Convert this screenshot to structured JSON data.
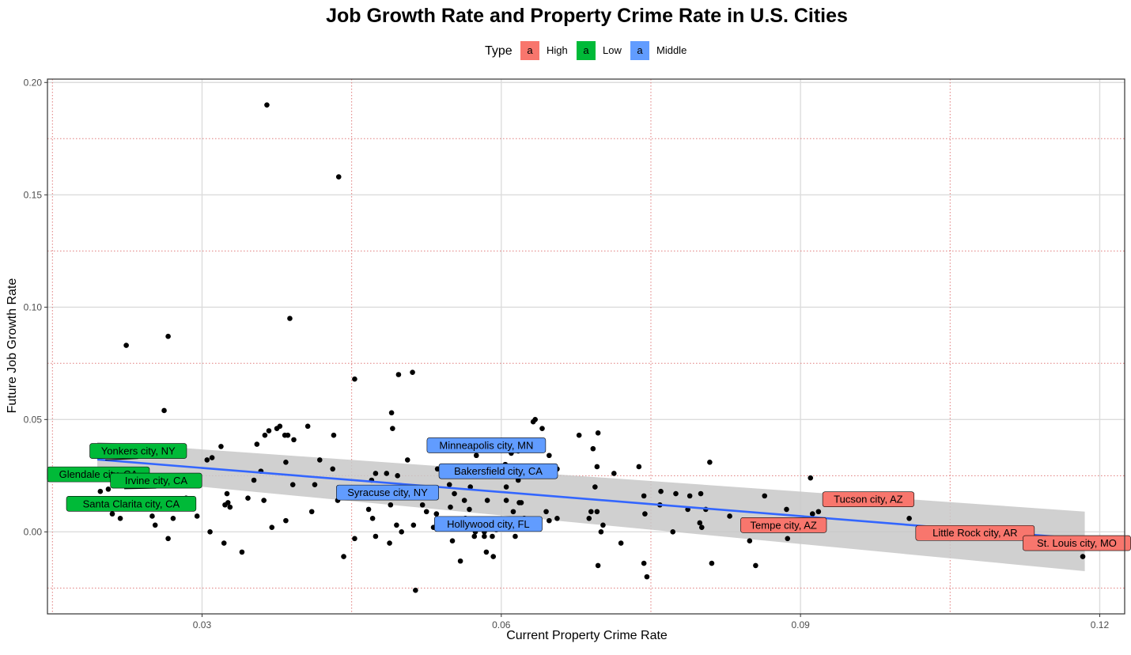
{
  "chart_data": {
    "type": "scatter",
    "title": "Job Growth Rate and Property Crime Rate in U.S. Cities",
    "xlabel": "Current Property Crime Rate",
    "ylabel": "Future Job Growth Rate",
    "xlim": [
      0.0145,
      0.1225
    ],
    "ylim": [
      -0.0365,
      0.2015
    ],
    "x_ticks": [
      0.03,
      0.06,
      0.09,
      0.12
    ],
    "x_tick_labels": [
      "0.03",
      "0.06",
      "0.09",
      "0.12"
    ],
    "y_ticks": [
      0.0,
      0.05,
      0.1,
      0.15,
      0.2
    ],
    "y_tick_labels": [
      "0.00",
      "0.05",
      "0.10",
      "0.15",
      "0.20"
    ],
    "reference_lines_x": [
      0.015,
      0.045,
      0.075,
      0.105
    ],
    "reference_lines_y": [
      -0.025,
      0.025,
      0.075,
      0.125,
      0.175
    ],
    "legend": {
      "title": "Type",
      "position": "top",
      "entries": [
        {
          "label": "High",
          "key": "a",
          "color": "#F8766D"
        },
        {
          "label": "Low",
          "key": "a",
          "color": "#00BA38"
        },
        {
          "label": "Middle",
          "key": "a",
          "color": "#619CFF"
        }
      ]
    },
    "trend_line": {
      "method": "linear",
      "color": "#3366FF",
      "x": [
        0.0195,
        0.1185
      ],
      "y": [
        0.0322,
        -0.0032
      ],
      "band_color": "#C8C8C8",
      "band_lower": [
        0.0245,
        -0.0175
      ],
      "band_upper": [
        0.04,
        0.009
      ]
    },
    "points": [
      {
        "x": 0.0365,
        "y": 0.19
      },
      {
        "x": 0.0437,
        "y": 0.158
      },
      {
        "x": 0.0388,
        "y": 0.095
      },
      {
        "x": 0.0266,
        "y": 0.087
      },
      {
        "x": 0.0224,
        "y": 0.083
      },
      {
        "x": 0.0511,
        "y": 0.071
      },
      {
        "x": 0.0497,
        "y": 0.07
      },
      {
        "x": 0.0453,
        "y": 0.068
      },
      {
        "x": 0.0262,
        "y": 0.054
      },
      {
        "x": 0.049,
        "y": 0.053
      },
      {
        "x": 0.0634,
        "y": 0.05
      },
      {
        "x": 0.0632,
        "y": 0.049
      },
      {
        "x": 0.0378,
        "y": 0.047
      },
      {
        "x": 0.0406,
        "y": 0.047
      },
      {
        "x": 0.0491,
        "y": 0.046
      },
      {
        "x": 0.0641,
        "y": 0.046
      },
      {
        "x": 0.0367,
        "y": 0.045
      },
      {
        "x": 0.0375,
        "y": 0.046
      },
      {
        "x": 0.0383,
        "y": 0.043
      },
      {
        "x": 0.0386,
        "y": 0.043
      },
      {
        "x": 0.0432,
        "y": 0.043
      },
      {
        "x": 0.0363,
        "y": 0.043
      },
      {
        "x": 0.0678,
        "y": 0.043
      },
      {
        "x": 0.0697,
        "y": 0.044
      },
      {
        "x": 0.0392,
        "y": 0.041
      },
      {
        "x": 0.0355,
        "y": 0.039
      },
      {
        "x": 0.0319,
        "y": 0.038
      },
      {
        "x": 0.0692,
        "y": 0.037
      },
      {
        "x": 0.0617,
        "y": 0.036
      },
      {
        "x": 0.061,
        "y": 0.035
      },
      {
        "x": 0.0648,
        "y": 0.034
      },
      {
        "x": 0.0575,
        "y": 0.034
      },
      {
        "x": 0.031,
        "y": 0.033
      },
      {
        "x": 0.0305,
        "y": 0.032
      },
      {
        "x": 0.0418,
        "y": 0.032
      },
      {
        "x": 0.0506,
        "y": 0.032
      },
      {
        "x": 0.0384,
        "y": 0.031
      },
      {
        "x": 0.0809,
        "y": 0.031
      },
      {
        "x": 0.0604,
        "y": 0.03
      },
      {
        "x": 0.0738,
        "y": 0.029
      },
      {
        "x": 0.0696,
        "y": 0.029
      },
      {
        "x": 0.0536,
        "y": 0.028
      },
      {
        "x": 0.0431,
        "y": 0.028
      },
      {
        "x": 0.0656,
        "y": 0.028
      },
      {
        "x": 0.0359,
        "y": 0.027
      },
      {
        "x": 0.0474,
        "y": 0.026
      },
      {
        "x": 0.0485,
        "y": 0.026
      },
      {
        "x": 0.0713,
        "y": 0.026
      },
      {
        "x": 0.0496,
        "y": 0.025
      },
      {
        "x": 0.0638,
        "y": 0.025
      },
      {
        "x": 0.0352,
        "y": 0.023
      },
      {
        "x": 0.047,
        "y": 0.023
      },
      {
        "x": 0.0617,
        "y": 0.023
      },
      {
        "x": 0.0413,
        "y": 0.021
      },
      {
        "x": 0.0391,
        "y": 0.021
      },
      {
        "x": 0.0548,
        "y": 0.021
      },
      {
        "x": 0.0569,
        "y": 0.02
      },
      {
        "x": 0.0605,
        "y": 0.02
      },
      {
        "x": 0.0694,
        "y": 0.02
      },
      {
        "x": 0.091,
        "y": 0.024
      },
      {
        "x": 0.0287,
        "y": 0.021
      },
      {
        "x": 0.0206,
        "y": 0.019
      },
      {
        "x": 0.0198,
        "y": 0.018
      },
      {
        "x": 0.0325,
        "y": 0.017
      },
      {
        "x": 0.0468,
        "y": 0.017
      },
      {
        "x": 0.0553,
        "y": 0.017
      },
      {
        "x": 0.076,
        "y": 0.018
      },
      {
        "x": 0.0789,
        "y": 0.016
      },
      {
        "x": 0.0864,
        "y": 0.016
      },
      {
        "x": 0.0743,
        "y": 0.016
      },
      {
        "x": 0.0775,
        "y": 0.017
      },
      {
        "x": 0.08,
        "y": 0.017
      },
      {
        "x": 0.0284,
        "y": 0.015
      },
      {
        "x": 0.0346,
        "y": 0.015
      },
      {
        "x": 0.0436,
        "y": 0.014
      },
      {
        "x": 0.0605,
        "y": 0.014
      },
      {
        "x": 0.0362,
        "y": 0.014
      },
      {
        "x": 0.0586,
        "y": 0.014
      },
      {
        "x": 0.0326,
        "y": 0.013
      },
      {
        "x": 0.0563,
        "y": 0.014
      },
      {
        "x": 0.0618,
        "y": 0.013
      },
      {
        "x": 0.062,
        "y": 0.013
      },
      {
        "x": 0.0323,
        "y": 0.012
      },
      {
        "x": 0.0521,
        "y": 0.012
      },
      {
        "x": 0.0489,
        "y": 0.012
      },
      {
        "x": 0.0549,
        "y": 0.011
      },
      {
        "x": 0.0759,
        "y": 0.012
      },
      {
        "x": 0.0787,
        "y": 0.01
      },
      {
        "x": 0.0805,
        "y": 0.01
      },
      {
        "x": 0.0886,
        "y": 0.01
      },
      {
        "x": 0.0328,
        "y": 0.011
      },
      {
        "x": 0.0467,
        "y": 0.01
      },
      {
        "x": 0.0568,
        "y": 0.01
      },
      {
        "x": 0.0525,
        "y": 0.009
      },
      {
        "x": 0.0535,
        "y": 0.008
      },
      {
        "x": 0.0612,
        "y": 0.009
      },
      {
        "x": 0.0645,
        "y": 0.009
      },
      {
        "x": 0.069,
        "y": 0.009
      },
      {
        "x": 0.0696,
        "y": 0.009
      },
      {
        "x": 0.041,
        "y": 0.009
      },
      {
        "x": 0.021,
        "y": 0.008
      },
      {
        "x": 0.025,
        "y": 0.007
      },
      {
        "x": 0.0295,
        "y": 0.007
      },
      {
        "x": 0.0218,
        "y": 0.006
      },
      {
        "x": 0.0384,
        "y": 0.005
      },
      {
        "x": 0.0271,
        "y": 0.006
      },
      {
        "x": 0.0471,
        "y": 0.006
      },
      {
        "x": 0.0564,
        "y": 0.006
      },
      {
        "x": 0.0623,
        "y": 0.006
      },
      {
        "x": 0.0648,
        "y": 0.005
      },
      {
        "x": 0.0656,
        "y": 0.006
      },
      {
        "x": 0.0688,
        "y": 0.006
      },
      {
        "x": 0.0744,
        "y": 0.008
      },
      {
        "x": 0.0799,
        "y": 0.004
      },
      {
        "x": 0.0829,
        "y": 0.007
      },
      {
        "x": 0.1009,
        "y": 0.006
      },
      {
        "x": 0.0918,
        "y": 0.009
      },
      {
        "x": 0.0912,
        "y": 0.008
      },
      {
        "x": 0.0253,
        "y": 0.003
      },
      {
        "x": 0.037,
        "y": 0.002
      },
      {
        "x": 0.0495,
        "y": 0.003
      },
      {
        "x": 0.0512,
        "y": 0.003
      },
      {
        "x": 0.0532,
        "y": 0.002
      },
      {
        "x": 0.0622,
        "y": 0.002
      },
      {
        "x": 0.0702,
        "y": 0.003
      },
      {
        "x": 0.0801,
        "y": 0.002
      },
      {
        "x": 0.0308,
        "y": 0.0
      },
      {
        "x": 0.05,
        "y": 0.0
      },
      {
        "x": 0.0574,
        "y": 0.0
      },
      {
        "x": 0.0583,
        "y": 0.0
      },
      {
        "x": 0.0595,
        "y": 0.001
      },
      {
        "x": 0.07,
        "y": 0.0
      },
      {
        "x": 0.0772,
        "y": 0.0
      },
      {
        "x": 0.0266,
        "y": -0.003
      },
      {
        "x": 0.0322,
        "y": -0.005
      },
      {
        "x": 0.034,
        "y": -0.009
      },
      {
        "x": 0.0442,
        "y": -0.011
      },
      {
        "x": 0.0453,
        "y": -0.003
      },
      {
        "x": 0.0474,
        "y": -0.002
      },
      {
        "x": 0.0488,
        "y": -0.005
      },
      {
        "x": 0.0551,
        "y": -0.004
      },
      {
        "x": 0.0573,
        "y": -0.002
      },
      {
        "x": 0.0583,
        "y": -0.002
      },
      {
        "x": 0.0591,
        "y": -0.002
      },
      {
        "x": 0.0614,
        "y": -0.002
      },
      {
        "x": 0.072,
        "y": -0.005
      },
      {
        "x": 0.0849,
        "y": -0.004
      },
      {
        "x": 0.0887,
        "y": -0.003
      },
      {
        "x": 0.0855,
        "y": -0.015
      },
      {
        "x": 0.0811,
        "y": -0.014
      },
      {
        "x": 0.0743,
        "y": -0.014
      },
      {
        "x": 0.0746,
        "y": -0.02
      },
      {
        "x": 0.0697,
        "y": -0.015
      },
      {
        "x": 0.0585,
        "y": -0.009
      },
      {
        "x": 0.0592,
        "y": -0.011
      },
      {
        "x": 0.0559,
        "y": -0.013
      },
      {
        "x": 0.0514,
        "y": -0.026
      },
      {
        "x": 0.1183,
        "y": -0.011
      }
    ],
    "labels": [
      {
        "text": "Yonkers city, NY",
        "type": "Low",
        "color": "#00BA38",
        "x": 0.0203,
        "y": 0.032,
        "label_x": 0.0236,
        "label_y": 0.036,
        "connector": true
      },
      {
        "text": "Glendale city, CA",
        "type": "Low",
        "color": "#00BA38",
        "x": 0.0196,
        "y": 0.0256,
        "label_x": 0.0196,
        "label_y": 0.0256,
        "connector": false
      },
      {
        "text": "Irvine city, CA",
        "type": "Low",
        "color": "#00BA38",
        "x": 0.0222,
        "y": 0.0192,
        "label_x": 0.0254,
        "label_y": 0.0228,
        "connector": true
      },
      {
        "text": "Santa Clarita city, CA",
        "type": "Low",
        "color": "#00BA38",
        "x": 0.0229,
        "y": 0.0125,
        "label_x": 0.0229,
        "label_y": 0.0125,
        "connector": false
      },
      {
        "text": "Minneapolis city, MN",
        "type": "Middle",
        "color": "#619CFF",
        "x": 0.0585,
        "y": 0.0385,
        "label_x": 0.0585,
        "label_y": 0.0385,
        "connector": false
      },
      {
        "text": "Bakersfield city, CA",
        "type": "Middle",
        "color": "#619CFF",
        "x": 0.0597,
        "y": 0.027,
        "label_x": 0.0597,
        "label_y": 0.027,
        "connector": false
      },
      {
        "text": "Syracuse city, NY",
        "type": "Middle",
        "color": "#619CFF",
        "x": 0.0486,
        "y": 0.0175,
        "label_x": 0.0486,
        "label_y": 0.0175,
        "connector": false
      },
      {
        "text": "Hollywood city, FL",
        "type": "Middle",
        "color": "#619CFF",
        "x": 0.0587,
        "y": 0.0035,
        "label_x": 0.0587,
        "label_y": 0.0035,
        "connector": false
      },
      {
        "text": "Tucson city, AZ",
        "type": "High",
        "color": "#F8766D",
        "x": 0.0968,
        "y": 0.0145,
        "label_x": 0.0968,
        "label_y": 0.0145,
        "connector": false
      },
      {
        "text": "Tempe city, AZ",
        "type": "High",
        "color": "#F8766D",
        "x": 0.0883,
        "y": 0.003,
        "label_x": 0.0883,
        "label_y": 0.003,
        "connector": false
      },
      {
        "text": "Little Rock city, AR",
        "type": "High",
        "color": "#F8766D",
        "x": 0.1075,
        "y": -0.0005,
        "label_x": 0.1075,
        "label_y": -0.0005,
        "connector": false
      },
      {
        "text": "St. Louis city, MO",
        "type": "High",
        "color": "#F8766D",
        "x": 0.1177,
        "y": -0.005,
        "label_x": 0.1177,
        "label_y": -0.005,
        "connector": false
      }
    ]
  }
}
